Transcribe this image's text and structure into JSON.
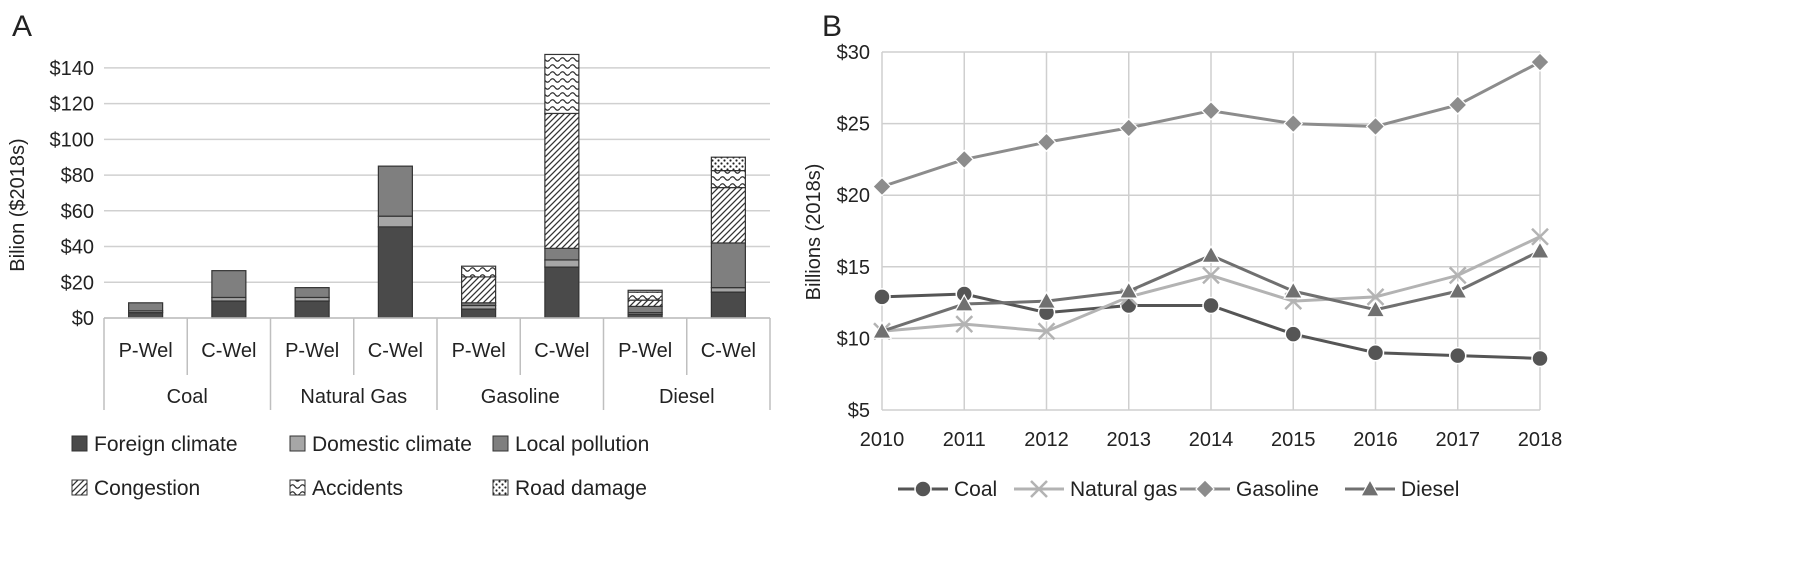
{
  "chart_data": [
    {
      "panel_label": "A",
      "type": "bar",
      "stacked": true,
      "ylabel": "Bilion ($2018s)",
      "ylim": [
        0,
        150
      ],
      "ytick_values": [
        0,
        20,
        40,
        60,
        80,
        100,
        120,
        140
      ],
      "ytick_labels": [
        "$0",
        "$20",
        "$40",
        "$60",
        "$80",
        "$100",
        "$120",
        "$140"
      ],
      "categories": [
        "P-Wel",
        "C-Wel",
        "P-Wel",
        "C-Wel",
        "P-Wel",
        "C-Wel",
        "P-Wel",
        "C-Wel"
      ],
      "groups": [
        {
          "name": "Coal",
          "span": 2
        },
        {
          "name": "Natural Gas",
          "span": 2
        },
        {
          "name": "Gasoline",
          "span": 2
        },
        {
          "name": "Diesel",
          "span": 2
        }
      ],
      "legend_position": "bottom",
      "grid": true,
      "series": [
        {
          "name": "Foreign climate",
          "pattern": "solid-dark",
          "color": "#4a4a4a",
          "values": [
            3,
            9.5,
            9.5,
            51,
            5,
            28.5,
            2,
            14.5
          ]
        },
        {
          "name": "Domestic climate",
          "pattern": "solid-light",
          "color": "#a6a6a6",
          "values": [
            1,
            2,
            2,
            6,
            2,
            4,
            1,
            2.5
          ]
        },
        {
          "name": "Local pollution",
          "pattern": "solid-mid",
          "color": "#7f7f7f",
          "values": [
            4.5,
            15,
            5.5,
            28,
            1.5,
            6.5,
            3.5,
            25
          ]
        },
        {
          "name": "Congestion",
          "pattern": "diagonal-dense",
          "color": "#333333",
          "values": [
            0,
            0,
            0,
            0,
            14.5,
            75.5,
            3.5,
            31
          ]
        },
        {
          "name": "Accidents",
          "pattern": "wave",
          "color": "#333333",
          "values": [
            0,
            0,
            0,
            0,
            6,
            33,
            4.5,
            9.5
          ]
        },
        {
          "name": "Road damage",
          "pattern": "dots",
          "color": "#333333",
          "values": [
            0,
            0,
            0,
            0,
            0,
            0,
            1,
            7.5
          ]
        }
      ]
    },
    {
      "panel_label": "B",
      "type": "line",
      "ylabel": "Billions (2018s)",
      "ylim": [
        5,
        30
      ],
      "ytick_values": [
        5,
        10,
        15,
        20,
        25,
        30
      ],
      "ytick_labels": [
        "$5",
        "$10",
        "$15",
        "$20",
        "$25",
        "$30"
      ],
      "x": [
        "2010",
        "2011",
        "2012",
        "2013",
        "2014",
        "2015",
        "2016",
        "2017",
        "2018"
      ],
      "legend_position": "bottom",
      "grid": true,
      "series": [
        {
          "name": "Coal",
          "marker": "circle",
          "color": "#555555",
          "values": [
            12.9,
            13.1,
            11.8,
            12.3,
            12.3,
            10.3,
            9.0,
            8.8,
            8.6
          ]
        },
        {
          "name": "Natural gas",
          "marker": "x",
          "color": "#b3b3b3",
          "values": [
            10.5,
            11.0,
            10.5,
            12.9,
            14.4,
            12.6,
            12.9,
            14.4,
            17.1
          ]
        },
        {
          "name": "Gasoline",
          "marker": "diamond",
          "color": "#8c8c8c",
          "values": [
            20.6,
            22.5,
            23.7,
            24.7,
            25.9,
            25.0,
            24.8,
            26.3,
            29.3
          ]
        },
        {
          "name": "Diesel",
          "marker": "triangle",
          "color": "#707070",
          "values": [
            10.5,
            12.4,
            12.6,
            13.3,
            15.8,
            13.3,
            12.0,
            13.3,
            16.1
          ]
        }
      ]
    }
  ]
}
